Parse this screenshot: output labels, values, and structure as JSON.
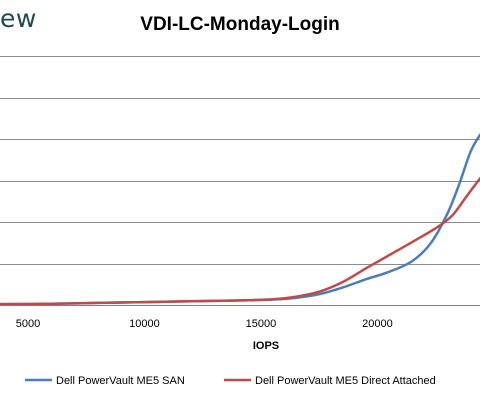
{
  "logo_text": "ew",
  "chart_data": {
    "type": "line",
    "title": "VDI-LC-Monday-Login",
    "xlabel": "IOPS",
    "ylabel": "",
    "xlim": [
      3800,
      24400
    ],
    "ylim": [
      0,
      6
    ],
    "x_ticks": [
      5000,
      10000,
      15000,
      20000
    ],
    "gridlines_y": [
      1,
      2,
      3,
      4,
      5,
      6
    ],
    "grid": true,
    "legend_position": "bottom",
    "series": [
      {
        "name": "Dell PowerVault ME5 SAN",
        "color": "#4a7ebb",
        "x": [
          3800,
          6000,
          8000,
          10000,
          12000,
          14000,
          15500,
          16500,
          17500,
          18500,
          19500,
          20500,
          21500,
          22300,
          23000,
          23500,
          24000,
          24400
        ],
        "y": [
          0.02,
          0.03,
          0.05,
          0.07,
          0.09,
          0.11,
          0.13,
          0.17,
          0.26,
          0.42,
          0.62,
          0.8,
          1.06,
          1.5,
          2.2,
          2.9,
          3.7,
          4.1
        ]
      },
      {
        "name": "Dell PowerVault ME5 Direct Attached",
        "color": "#be4b48",
        "x": [
          3800,
          6000,
          8000,
          10000,
          12000,
          14000,
          15500,
          16500,
          17500,
          18500,
          19500,
          20500,
          21500,
          22500,
          23200,
          23800,
          24400
        ],
        "y": [
          0.02,
          0.03,
          0.05,
          0.07,
          0.09,
          0.11,
          0.14,
          0.2,
          0.32,
          0.55,
          0.88,
          1.2,
          1.52,
          1.85,
          2.15,
          2.6,
          3.05
        ]
      }
    ]
  }
}
